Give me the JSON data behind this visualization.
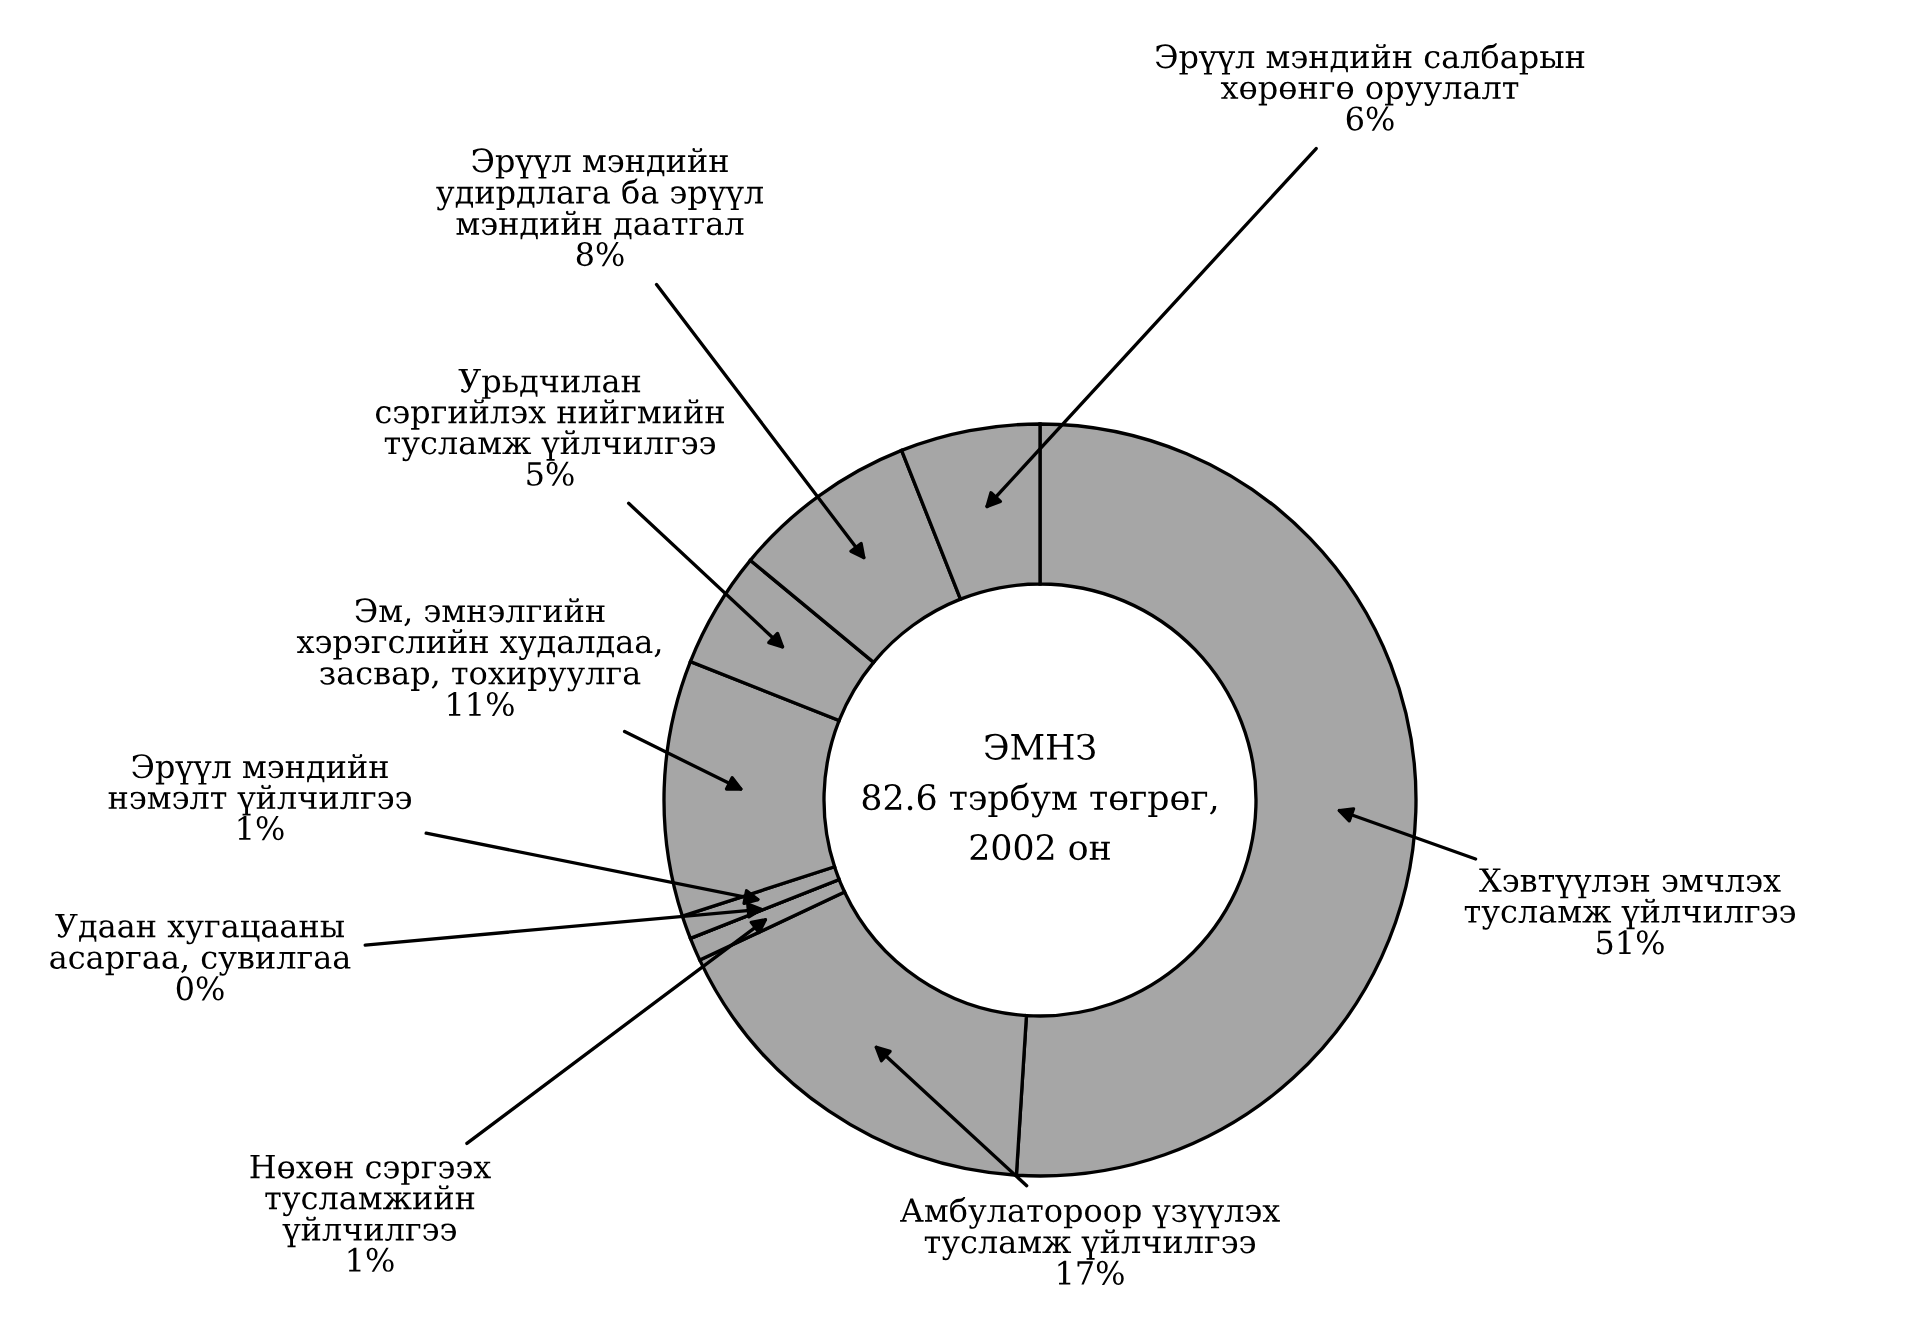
{
  "chart_data": {
    "type": "donut",
    "categories": [
      "Хэвтүүлэн эмчлэх\nтусламж үйлчилгээ",
      "Амбулатороор үзүүлэх\nтусламж үйлчилгээ",
      "Нөхөн сэргээх\nтусламжийн\nүйлчилгээ",
      "Удаан хугацааны\nасаргаа, сувилгаа",
      "Эрүүл мэндийн\nнэмэлт үйлчилгээ",
      "Эм, эмнэлгийн\nхэрэгслийн худалдаа,\nзасвар, тохируулга",
      "Урьдчилан\nсэргийлэх нийгмийн\nтусламж үйлчилгээ",
      "Эрүүл мэндийн\nудирдлага ба эрүүл\nмэндийн даатгал",
      "Эрүүл мэндийн салбарын\nхөрөнгө оруулалт"
    ],
    "values": [
      51,
      17,
      1,
      0,
      1,
      11,
      5,
      8,
      6
    ],
    "value_labels": [
      "51%",
      "17%",
      "1%",
      "0%",
      "1%",
      "11%",
      "5%",
      "8%",
      "6%"
    ],
    "colors": [
      "#a6a6a6",
      "#a6a6a6",
      "#a6a6a6",
      "#a6a6a6",
      "#a6a6a6",
      "#a6a6a6",
      "#a6a6a6",
      "#a6a6a6",
      "#a6a6a6"
    ],
    "annotations": [
      "ЭМНЗ\n82.6 тэрбум төгрөг,\n2002 он"
    ]
  }
}
